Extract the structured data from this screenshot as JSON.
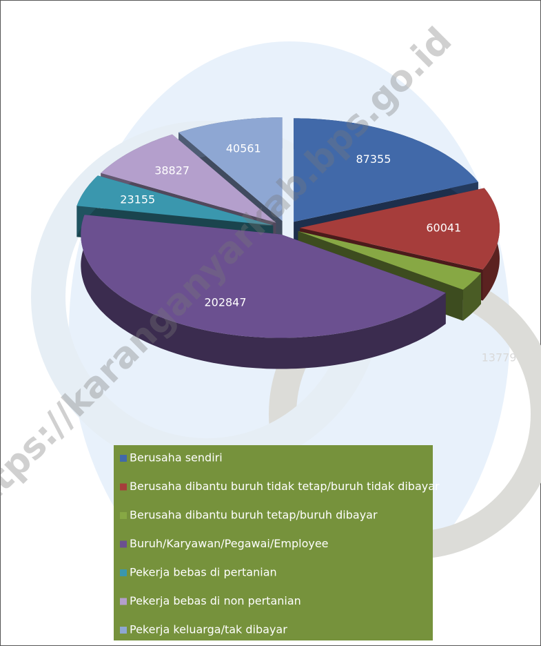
{
  "chart_data": {
    "type": "pie3d",
    "watermark": "https://karanganyarkab.bps.go.id",
    "categories": [
      "Berusaha sendiri",
      "Berusaha dibantu buruh tidak tetap/buruh tidak dibayar",
      "Berusaha dibantu buruh tetap/buruh dibayar",
      "Buruh/Karyawan/Pegawai/Employee",
      "Pekerja bebas di pertanian",
      "Pekerja bebas di non pertanian",
      "Pekerja keluarga/tak dibayar"
    ],
    "values": [
      87355,
      60041,
      13779,
      202847,
      23155,
      38827,
      40561
    ],
    "colors": [
      "#4169a9",
      "#a63d3b",
      "#87a844",
      "#6b5090",
      "#3a97ae",
      "#b49fcc",
      "#8ea7d3"
    ]
  }
}
